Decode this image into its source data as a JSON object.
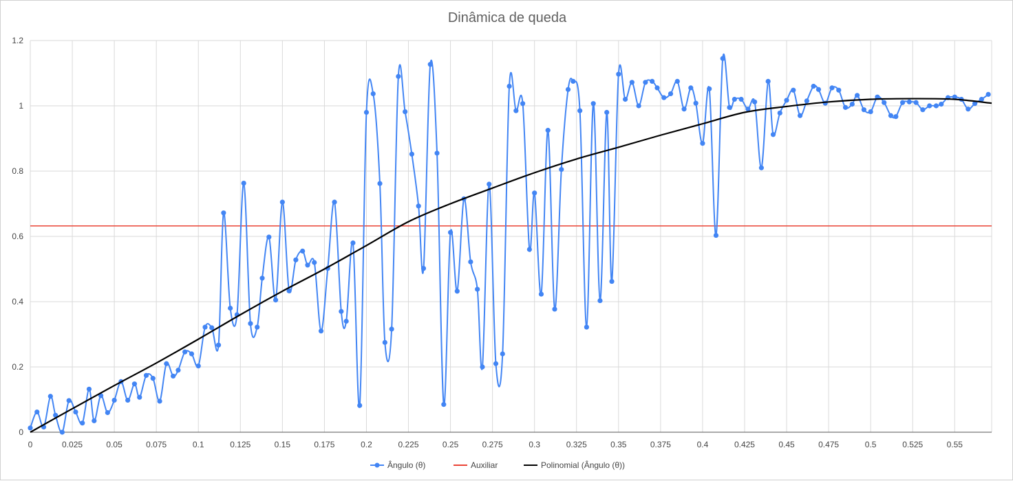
{
  "chart_data": {
    "type": "line",
    "title": "Dinâmica de queda",
    "xlabel": "",
    "ylabel": "",
    "xlim": [
      0,
      0.572
    ],
    "ylim": [
      0,
      1.2
    ],
    "x_ticks": [
      "0",
      "0.025",
      "0.05",
      "0.075",
      "0.1",
      "0.125",
      "0.15",
      "0.175",
      "0.2",
      "0.225",
      "0.25",
      "0.275",
      "0.3",
      "0.325",
      "0.35",
      "0.375",
      "0.4",
      "0.425",
      "0.45",
      "0.475",
      "0.5",
      "0.525",
      "0.55"
    ],
    "y_ticks": [
      "0",
      "0.2",
      "0.4",
      "0.6",
      "0.8",
      "1",
      "1.2"
    ],
    "grid": true,
    "legend_position": "bottom",
    "series": [
      {
        "name": "Ângulo (θ)",
        "color": "#4285f4",
        "marker": "circle",
        "points": [
          [
            0.0,
            0.013
          ],
          [
            0.004,
            0.062
          ],
          [
            0.008,
            0.016
          ],
          [
            0.012,
            0.11
          ],
          [
            0.015,
            0.052
          ],
          [
            0.019,
            0.0
          ],
          [
            0.023,
            0.097
          ],
          [
            0.027,
            0.062
          ],
          [
            0.031,
            0.028
          ],
          [
            0.035,
            0.132
          ],
          [
            0.038,
            0.035
          ],
          [
            0.042,
            0.112
          ],
          [
            0.046,
            0.06
          ],
          [
            0.05,
            0.098
          ],
          [
            0.054,
            0.155
          ],
          [
            0.058,
            0.098
          ],
          [
            0.062,
            0.148
          ],
          [
            0.065,
            0.107
          ],
          [
            0.069,
            0.174
          ],
          [
            0.073,
            0.165
          ],
          [
            0.077,
            0.095
          ],
          [
            0.081,
            0.21
          ],
          [
            0.085,
            0.172
          ],
          [
            0.088,
            0.19
          ],
          [
            0.092,
            0.246
          ],
          [
            0.096,
            0.24
          ],
          [
            0.1,
            0.203
          ],
          [
            0.104,
            0.322
          ],
          [
            0.108,
            0.32
          ],
          [
            0.112,
            0.267
          ],
          [
            0.115,
            0.672
          ],
          [
            0.119,
            0.38
          ],
          [
            0.123,
            0.36
          ],
          [
            0.127,
            0.763
          ],
          [
            0.131,
            0.333
          ],
          [
            0.135,
            0.322
          ],
          [
            0.138,
            0.472
          ],
          [
            0.142,
            0.598
          ],
          [
            0.146,
            0.405
          ],
          [
            0.15,
            0.705
          ],
          [
            0.154,
            0.433
          ],
          [
            0.158,
            0.528
          ],
          [
            0.162,
            0.555
          ],
          [
            0.165,
            0.512
          ],
          [
            0.169,
            0.52
          ],
          [
            0.173,
            0.31
          ],
          [
            0.177,
            0.502
          ],
          [
            0.181,
            0.705
          ],
          [
            0.185,
            0.37
          ],
          [
            0.188,
            0.34
          ],
          [
            0.192,
            0.58
          ],
          [
            0.196,
            0.082
          ],
          [
            0.2,
            0.98
          ],
          [
            0.204,
            1.037
          ],
          [
            0.208,
            0.762
          ],
          [
            0.211,
            0.275
          ],
          [
            0.215,
            0.316
          ],
          [
            0.219,
            1.09
          ],
          [
            0.223,
            0.982
          ],
          [
            0.227,
            0.852
          ],
          [
            0.231,
            0.693
          ],
          [
            0.234,
            0.502
          ],
          [
            0.238,
            1.127
          ],
          [
            0.242,
            0.855
          ],
          [
            0.246,
            0.085
          ],
          [
            0.25,
            0.612
          ],
          [
            0.254,
            0.432
          ],
          [
            0.258,
            0.715
          ],
          [
            0.262,
            0.522
          ],
          [
            0.266,
            0.438
          ],
          [
            0.269,
            0.2
          ],
          [
            0.273,
            0.76
          ],
          [
            0.277,
            0.21
          ],
          [
            0.281,
            0.24
          ],
          [
            0.285,
            1.06
          ],
          [
            0.289,
            0.985
          ],
          [
            0.293,
            1.007
          ],
          [
            0.297,
            0.56
          ],
          [
            0.3,
            0.733
          ],
          [
            0.304,
            0.423
          ],
          [
            0.308,
            0.925
          ],
          [
            0.312,
            0.377
          ],
          [
            0.316,
            0.805
          ],
          [
            0.32,
            1.05
          ],
          [
            0.323,
            1.075
          ],
          [
            0.327,
            0.985
          ],
          [
            0.331,
            0.322
          ],
          [
            0.335,
            1.007
          ],
          [
            0.339,
            0.403
          ],
          [
            0.343,
            0.98
          ],
          [
            0.346,
            0.462
          ],
          [
            0.35,
            1.097
          ],
          [
            0.354,
            1.02
          ],
          [
            0.358,
            1.072
          ],
          [
            0.362,
            1.0
          ],
          [
            0.366,
            1.072
          ],
          [
            0.37,
            1.075
          ],
          [
            0.373,
            1.055
          ],
          [
            0.377,
            1.025
          ],
          [
            0.381,
            1.037
          ],
          [
            0.385,
            1.075
          ],
          [
            0.389,
            0.99
          ],
          [
            0.393,
            1.055
          ],
          [
            0.396,
            1.008
          ],
          [
            0.4,
            0.885
          ],
          [
            0.404,
            1.052
          ],
          [
            0.408,
            0.603
          ],
          [
            0.412,
            1.145
          ],
          [
            0.416,
            0.995
          ],
          [
            0.419,
            1.02
          ],
          [
            0.423,
            1.02
          ],
          [
            0.427,
            0.99
          ],
          [
            0.431,
            1.012
          ],
          [
            0.435,
            0.81
          ],
          [
            0.439,
            1.075
          ],
          [
            0.442,
            0.912
          ],
          [
            0.446,
            0.978
          ],
          [
            0.45,
            1.017
          ],
          [
            0.454,
            1.048
          ],
          [
            0.458,
            0.97
          ],
          [
            0.462,
            1.015
          ],
          [
            0.466,
            1.06
          ],
          [
            0.469,
            1.05
          ],
          [
            0.473,
            1.008
          ],
          [
            0.477,
            1.055
          ],
          [
            0.481,
            1.048
          ],
          [
            0.485,
            0.995
          ],
          [
            0.489,
            1.005
          ],
          [
            0.492,
            1.032
          ],
          [
            0.496,
            0.988
          ],
          [
            0.5,
            0.982
          ],
          [
            0.504,
            1.027
          ],
          [
            0.508,
            1.01
          ],
          [
            0.512,
            0.97
          ],
          [
            0.515,
            0.967
          ],
          [
            0.519,
            1.01
          ],
          [
            0.523,
            1.012
          ],
          [
            0.527,
            1.01
          ],
          [
            0.531,
            0.988
          ],
          [
            0.535,
            1.0
          ],
          [
            0.539,
            1.0
          ],
          [
            0.542,
            1.005
          ],
          [
            0.546,
            1.025
          ],
          [
            0.55,
            1.027
          ],
          [
            0.554,
            1.02
          ],
          [
            0.558,
            0.99
          ],
          [
            0.562,
            1.007
          ],
          [
            0.566,
            1.02
          ],
          [
            0.57,
            1.035
          ]
        ]
      },
      {
        "name": "Auxiliar",
        "color": "#ea4335",
        "marker": "none",
        "points": [
          [
            0.0,
            0.632
          ],
          [
            0.572,
            0.632
          ]
        ]
      },
      {
        "name": "Polinomial (Ângulo (θ))",
        "color": "#000000",
        "marker": "none",
        "points": [
          [
            0.0,
            0.0
          ],
          [
            0.025,
            0.072
          ],
          [
            0.05,
            0.143
          ],
          [
            0.075,
            0.212
          ],
          [
            0.1,
            0.285
          ],
          [
            0.125,
            0.36
          ],
          [
            0.15,
            0.432
          ],
          [
            0.175,
            0.5
          ],
          [
            0.2,
            0.572
          ],
          [
            0.225,
            0.645
          ],
          [
            0.25,
            0.7
          ],
          [
            0.275,
            0.748
          ],
          [
            0.3,
            0.795
          ],
          [
            0.325,
            0.837
          ],
          [
            0.35,
            0.873
          ],
          [
            0.375,
            0.91
          ],
          [
            0.4,
            0.945
          ],
          [
            0.425,
            0.98
          ],
          [
            0.45,
            0.998
          ],
          [
            0.475,
            1.012
          ],
          [
            0.5,
            1.02
          ],
          [
            0.525,
            1.022
          ],
          [
            0.55,
            1.02
          ],
          [
            0.572,
            1.008
          ]
        ]
      }
    ]
  }
}
